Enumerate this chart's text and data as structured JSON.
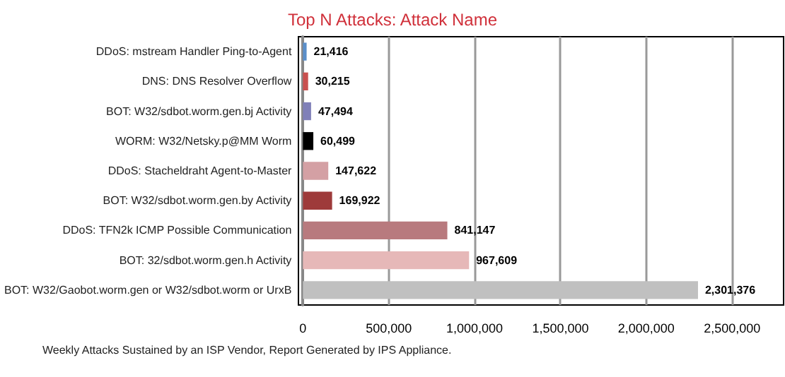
{
  "chart_data": {
    "type": "bar",
    "orientation": "horizontal",
    "title": "Top N Attacks: Attack Name",
    "categories": [
      "DDoS: mstream Handler Ping-to-Agent",
      "DNS: DNS Resolver Overflow",
      "BOT: W32/sdbot.worm.gen.bj Activity",
      "WORM: W32/Netsky.p@MM Worm",
      "DDoS: Stacheldraht Agent-to-Master",
      "BOT: W32/sdbot.worm.gen.by Activity",
      "DDoS: TFN2k ICMP Possible Communication",
      "BOT: 32/sdbot.worm.gen.h Activity",
      "BOT: W32/Gaobot.worm.gen or W32/sdbot.worm or UrxB"
    ],
    "values": [
      21416,
      30215,
      47494,
      60499,
      147622,
      169922,
      841147,
      967609,
      2301376
    ],
    "colors": [
      "#5b8fc9",
      "#c9504f",
      "#8080b8",
      "#000000",
      "#d4a0a4",
      "#9e3a3a",
      "#b87a7e",
      "#e6b8b8",
      "#c0c0c0"
    ],
    "xlim": [
      0,
      2800000
    ],
    "xticks": [
      {
        "value": 0,
        "label": "0"
      },
      {
        "value": 500000,
        "label": "500,000"
      },
      {
        "value": 1000000,
        "label": "1,000,000"
      },
      {
        "value": 1500000,
        "label": "1,500,000"
      },
      {
        "value": 2000000,
        "label": "2,000,000"
      },
      {
        "value": 2500000,
        "label": "2,500,000"
      }
    ],
    "value_labels": [
      "21,416",
      "30,215",
      "47,494",
      "60,499",
      "147,622",
      "169,922",
      "841,147",
      "967,609",
      "2,301,376"
    ],
    "grid": "x",
    "annotations": [
      "Weekly Attacks Sustained by an ISP Vendor, Report Generated by IPS Appliance."
    ]
  }
}
